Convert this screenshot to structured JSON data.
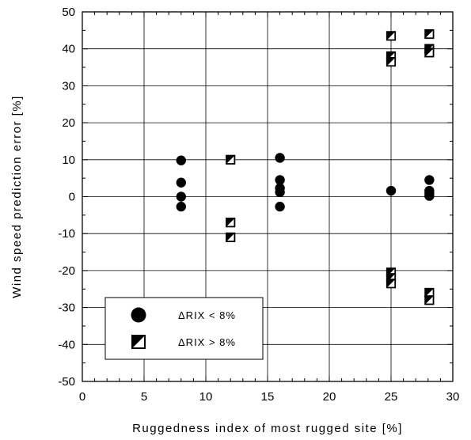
{
  "chart_data": {
    "type": "scatter",
    "xlabel": "Ruggedness index of most rugged site [%]",
    "ylabel": "Wind speed prediction error [%]",
    "xlim": [
      0,
      30
    ],
    "ylim": [
      -50,
      50
    ],
    "x_ticks": [
      0,
      5,
      10,
      15,
      20,
      25,
      30
    ],
    "y_ticks": [
      -50,
      -40,
      -30,
      -20,
      -10,
      0,
      10,
      20,
      30,
      40,
      50
    ],
    "x_tick_labels": [
      "0",
      "5",
      "10",
      "15",
      "20",
      "25",
      "30"
    ],
    "y_tick_labels": [
      "-50",
      "-40",
      "-30",
      "-20",
      "-10",
      "0",
      "10",
      "20",
      "30",
      "40",
      "50"
    ],
    "grid": true,
    "legend_position": "bottom-left",
    "series": [
      {
        "name": "ΔRIX < 8%",
        "marker": "filled-circle",
        "color": "#000000",
        "points": [
          {
            "x": 8,
            "y": 9.8
          },
          {
            "x": 8,
            "y": 3.8
          },
          {
            "x": 8,
            "y": 0.0
          },
          {
            "x": 8,
            "y": -2.7
          },
          {
            "x": 16,
            "y": 10.5
          },
          {
            "x": 16,
            "y": 4.5
          },
          {
            "x": 16,
            "y": 2.3
          },
          {
            "x": 16,
            "y": 1.2
          },
          {
            "x": 16,
            "y": -2.7
          },
          {
            "x": 25,
            "y": 1.6
          },
          {
            "x": 28.1,
            "y": 4.5
          },
          {
            "x": 28.1,
            "y": 1.6
          },
          {
            "x": 28.1,
            "y": 0.9
          },
          {
            "x": 28.1,
            "y": 0.2
          }
        ]
      },
      {
        "name": "ΔRIX > 8%",
        "marker": "half-filled-square",
        "color": "#000000",
        "points": [
          {
            "x": 12,
            "y": 10.0
          },
          {
            "x": 12,
            "y": -7.0
          },
          {
            "x": 12,
            "y": -11.0
          },
          {
            "x": 25,
            "y": 43.5
          },
          {
            "x": 25,
            "y": 38.0
          },
          {
            "x": 25,
            "y": 36.5
          },
          {
            "x": 25,
            "y": -20.5
          },
          {
            "x": 25,
            "y": -22.0
          },
          {
            "x": 25,
            "y": -23.5
          },
          {
            "x": 28.1,
            "y": 44.0
          },
          {
            "x": 28.1,
            "y": 40.0
          },
          {
            "x": 28.1,
            "y": 39.0
          },
          {
            "x": 28.1,
            "y": -26.0
          },
          {
            "x": 28.1,
            "y": -28.0
          }
        ]
      }
    ]
  }
}
